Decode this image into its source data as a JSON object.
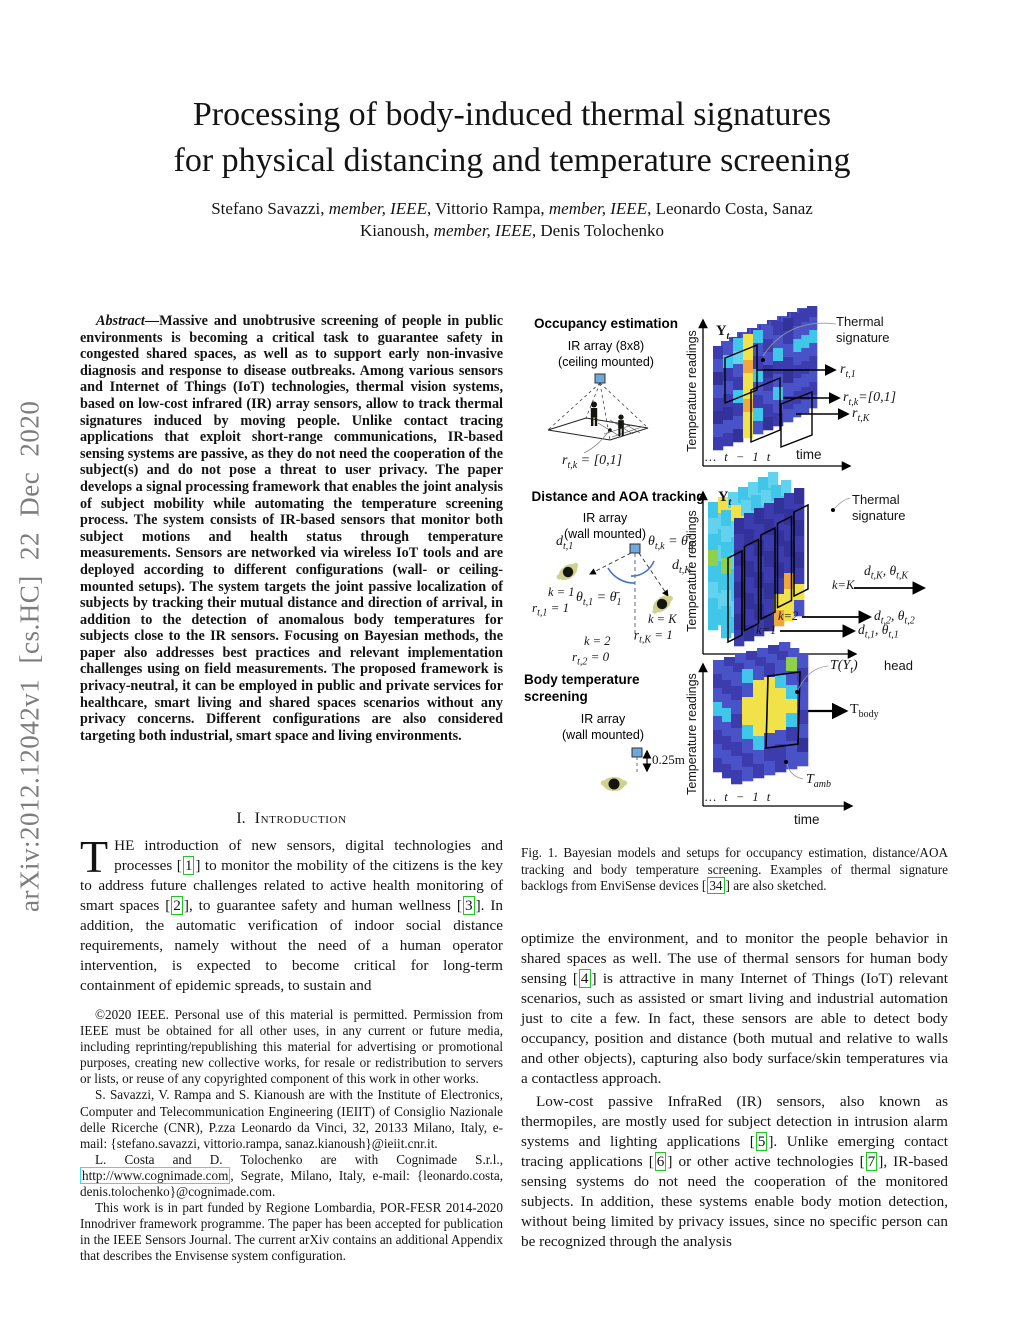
{
  "arxiv_banner": "arXiv:2012.12042v1 [cs.HC] 22 Dec 2020",
  "title": {
    "line1": "Processing of body-induced thermal signatures",
    "line2": "for physical distancing and temperature screening"
  },
  "authors": {
    "line1": [
      {
        "t": "Stefano Savazzi, "
      },
      {
        "i": "member, IEEE"
      },
      {
        "t": ", Vittorio Rampa, "
      },
      {
        "i": "member, IEEE"
      },
      {
        "t": ", Leonardo Costa, Sanaz"
      }
    ],
    "line2": [
      {
        "t": "Kianoush, "
      },
      {
        "i": "member, IEEE"
      },
      {
        "t": ", Denis Tolochenko"
      }
    ]
  },
  "abstract": {
    "label": "Abstract",
    "text": "—Massive and unobtrusive screening of people in public environments is becoming a critical task to guarantee safety in congested shared spaces, as well as to support early non-invasive diagnosis and response to disease outbreaks. Among various sensors and Internet of Things (IoT) technologies, thermal vision systems, based on low-cost infrared (IR) array sensors, allow to track thermal signatures induced by moving people. Unlike contact tracing applications that exploit short-range communications, IR-based sensing systems are passive, as they do not need the cooperation of the subject(s) and do not pose a threat to user privacy. The paper develops a signal processing framework that enables the joint analysis of subject mobility while automating the temperature screening process. The system consists of IR-based sensors that monitor both subject motions and health status through temperature measurements. Sensors are networked via wireless IoT tools and are deployed according to different configurations (wall- or ceiling-mounted setups). The system targets the joint passive localization of subjects by tracking their mutual distance and direction of arrival, in addition to the detection of anomalous body temperatures for subjects close to the IR sensors. Focusing on Bayesian methods, the paper also addresses best practices and relevant implementation challenges using on field measurements. The proposed framework is privacy-neutral, it can be employed in public and private services for healthcare, smart living and shared spaces scenarios without any privacy concerns. Different configurations are also considered targeting both industrial, smart space and living environments."
  },
  "section1": {
    "number": "I.",
    "title": "Introduction"
  },
  "intro": {
    "dropcap": "T",
    "p1": [
      {
        "t": "HE introduction of new sensors, digital technologies and processes "
      },
      {
        "c": "1"
      },
      {
        "t": " to monitor the mobility of the citizens is the key to address future challenges related to active health monitoring of smart spaces "
      },
      {
        "c": "2"
      },
      {
        "t": ", to guarantee safety and human wellness "
      },
      {
        "c": "3"
      },
      {
        "t": ". In addition, the automatic verification of indoor social distance requirements, namely without the need of a human operator intervention, is expected to become critical for long-term containment of epidemic spreads, to sustain and"
      }
    ]
  },
  "footnotes": {
    "p1": "©2020 IEEE. Personal use of this material is permitted. Permission from IEEE must be obtained for all other uses, in any current or future media, including reprinting/republishing this material for advertising or promotional purposes, creating new collective works, for resale or redistribution to servers or lists, or reuse of any copyrighted component of this work in other works.",
    "p2": "S. Savazzi, V. Rampa and S. Kianoush are with the Institute of Electronics, Computer and Telecommunication Engineering (IEIIT) of Consiglio Nazionale delle Ricerche (CNR), P.zza Leonardo da Vinci, 32, 20133 Milano, Italy, e-mail: {stefano.savazzi, vittorio.rampa, sanaz.kianoush}@ieiit.cnr.it.",
    "p3": [
      {
        "t": "L. Costa and D. Tolochenko are with Cognimade S.r.l., "
      },
      {
        "l": "http://www.cognimade.com"
      },
      {
        "t": ", Segrate, Milano, Italy, e-mail: {leonardo.costa, denis.tolochenko}@cognimade.com."
      }
    ],
    "p4": "This work is in part funded by Regione Lombardia, POR-FESR 2014-2020 Innodriver framework programme. The paper has been accepted for publication in the IEEE Sensors Journal. The current arXiv contains an additional Appendix that describes the Envisense system configuration."
  },
  "right_column": {
    "p1": [
      {
        "t": "optimize the environment, and to monitor the people behavior in shared spaces as well. The use of thermal sensors for human body sensing "
      },
      {
        "c": "4"
      },
      {
        "t": " is attractive in many Internet of Things (IoT) relevant scenarios, such as assisted or smart living and industrial automation just to cite a few. In fact, these sensors are able to detect body occupancy, position and distance (both mutual and relative to walls and other objects), capturing also body surface/skin temperatures via a contactless approach."
      }
    ],
    "p2": [
      {
        "t": "Low-cost passive InfraRed (IR) sensors, also known as thermopiles, are mostly used for subject detection in intrusion alarm systems and lighting applications "
      },
      {
        "c": "5"
      },
      {
        "t": ". Unlike emerging contact tracing applications "
      },
      {
        "c": "6"
      },
      {
        "t": " or other active technologies "
      },
      {
        "c": "7"
      },
      {
        "t": ", IR-based sensing systems do not need the cooperation of the monitored subjects. In addition, these systems enable body motion detection, without being limited by privacy issues, since no specific person can be recognized through the analysis"
      }
    ]
  },
  "figure": {
    "caption": [
      {
        "t": "Fig. 1.   Bayesian models and setups for occupancy estimation, distance/AOA tracking and body temperature screening. Examples of thermal signature backlogs from EnviSense devices "
      },
      {
        "c": "34"
      },
      {
        "t": " are also sketched."
      }
    ],
    "panel1": {
      "heading": "Occupancy estimation",
      "sub1": "IR array (8x8)",
      "sub2": "(ceiling mounted)",
      "floor_label": "r_{t,k} = [0,1]",
      "y_axis": "Temperature readings",
      "yt": "Y_{t}",
      "thermal_sig": "Thermal signature",
      "arrow1": "r_{t,1}",
      "arrow2": "r_{t,k}=[0,1]",
      "arrow3": "r_{t,K}",
      "time": "time",
      "ticks": "… t − 1 t"
    },
    "panel2": {
      "heading": "Distance and AOA tracking",
      "sub1": "IR array",
      "sub2": "(wall mounted)",
      "d1": "d_{t,1}",
      "thk": "θ_{t,k} = θ̄_{K}",
      "dK": "d_{t,K}",
      "th1": "θ_{t,1} = θ̄_{1}",
      "k1a": "k = 1",
      "k1b": "r_{t,1} = 1",
      "k2a": "k = 2",
      "k2b": "r_{t,2} = 0",
      "kKa": "k = K",
      "kKb": "r_{t,K} = 1",
      "y_axis": "Temperature readings",
      "yt": "Y_{t}",
      "thermal_sig": "Thermal signature",
      "kK_label": "k=K",
      "k2_label": "k=2",
      "k1_label": "k=1",
      "arrowK": "d_{t,K}, θ_{t,K}",
      "arrow2": "d_{t,2}, θ_{t,2}",
      "arrow1": "d_{t,1}, θ_{t,1}"
    },
    "panel3": {
      "heading1": "Body temperature",
      "heading2": "screening",
      "sub1": "IR array",
      "sub2": "(wall mounted)",
      "dist": "0.25m",
      "y_axis": "Temperature readings",
      "head_math": "T(Y_{t})",
      "head_word": "head",
      "tbody": "T_{body}",
      "tamb": "T_{amb}",
      "time": "time",
      "ticks": "… t − 1 t"
    },
    "colors": {
      "cite_box": "#1ec626",
      "link_box": "#49d7e8",
      "heat_indigo": "#3c3cae",
      "heat_blue": "#4a52c8",
      "heat_purple": "#32329a",
      "heat_cyan": "#3fc6e8",
      "heat_cyan_light": "#63d2ee",
      "heat_yellow": "#f2e24a",
      "heat_orange": "#f0a83c",
      "heat_green": "#8fd24a",
      "sensor_fill": "#6fa8dc",
      "angle_arc": "#4472c4"
    }
  }
}
